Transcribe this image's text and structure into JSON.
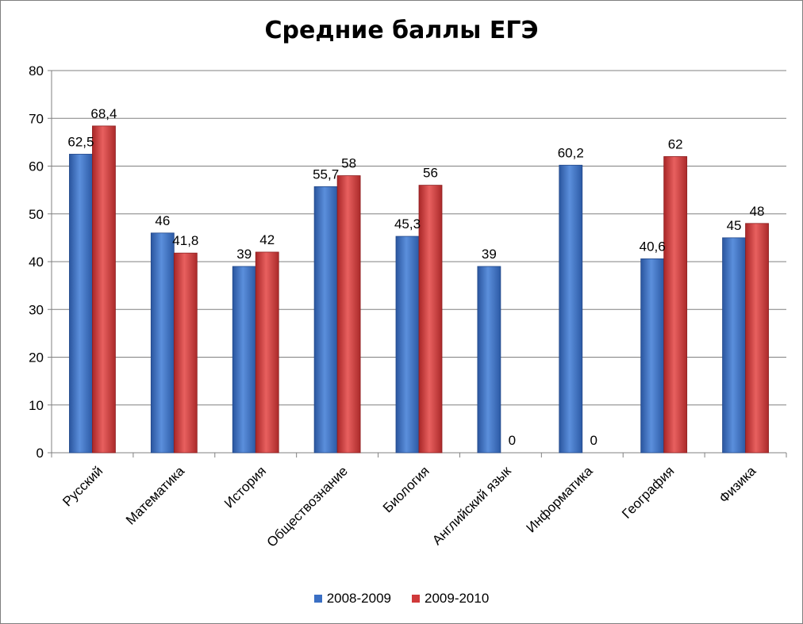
{
  "chart_data": {
    "type": "bar",
    "title": "Средние баллы ЕГЭ",
    "categories": [
      "Русский",
      "Математика",
      "История",
      "Обществознание",
      "Биология",
      "Английский язык",
      "Информатика",
      "География",
      "Физика"
    ],
    "series": [
      {
        "name": "2008-2009",
        "color": "#3a6fc4",
        "values": [
          62.5,
          46,
          39,
          55.7,
          45.3,
          39,
          60.2,
          40.6,
          45
        ],
        "labels": [
          "62,5",
          "46",
          "39",
          "55,7",
          "45,3",
          "39",
          "60,2",
          "40,6",
          "45"
        ]
      },
      {
        "name": "2009-2010",
        "color": "#d0393a",
        "values": [
          68.4,
          41.8,
          42,
          58,
          56,
          0,
          0,
          62,
          48
        ],
        "labels": [
          "68,4",
          "41,8",
          "42",
          "58",
          "56",
          "0",
          "0",
          "62",
          "48"
        ]
      }
    ],
    "ylim": [
      0,
      80
    ],
    "yticks": [
      0,
      10,
      20,
      30,
      40,
      50,
      60,
      70,
      80
    ],
    "grid": true,
    "legend_position": "bottom"
  }
}
